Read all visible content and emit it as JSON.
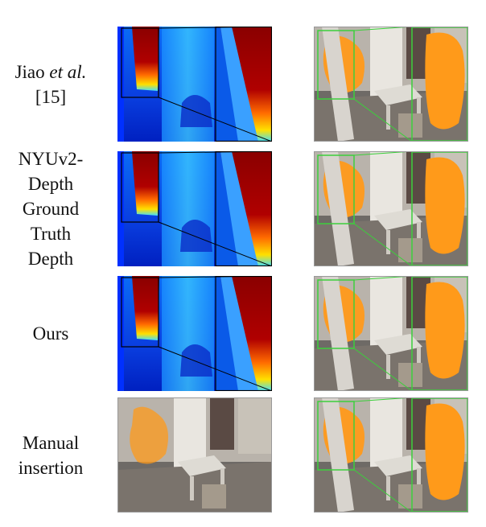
{
  "rows": [
    {
      "label_parts": [
        "Jiao ",
        "et al.",
        " [15]"
      ]
    },
    {
      "label_parts": [
        "NYUv2-Depth Ground Truth Depth"
      ]
    },
    {
      "label_parts": [
        "Ours"
      ]
    },
    {
      "label_parts": [
        "Manual insertion"
      ]
    }
  ]
}
